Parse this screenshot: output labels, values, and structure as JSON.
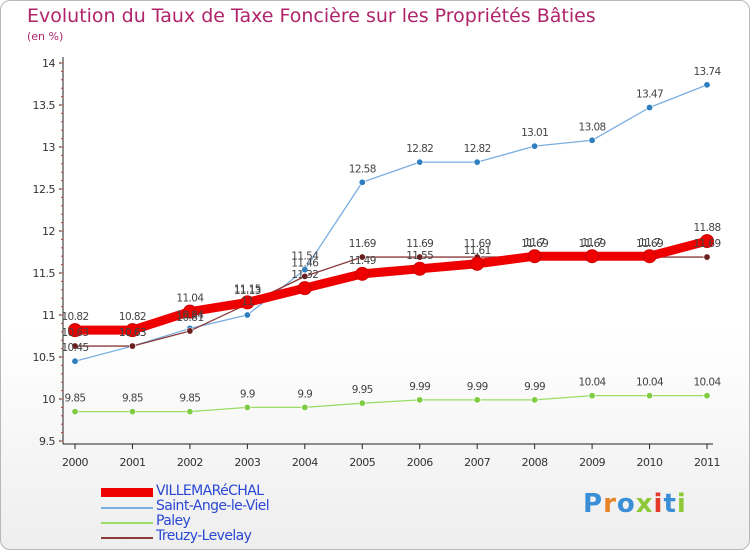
{
  "header": {
    "title": "Evolution du Taux de Taxe Foncière sur les Propriétés Bâties",
    "subtitle": "(en %)"
  },
  "logo": {
    "text": "Proxiti",
    "colors": [
      "#3a8fd6",
      "#e8842a",
      "#3a8fd6",
      "#8fc93a",
      "#e33a2a",
      "#3a8fd6",
      "#8fc93a"
    ]
  },
  "chart_data": {
    "type": "line",
    "title": "Evolution du Taux de Taxe Foncière sur les Propriétés Bâties",
    "ylabel": "(en %)",
    "xlabel": "",
    "x": [
      "2000",
      "2001",
      "2002",
      "2003",
      "2004",
      "2005",
      "2006",
      "2007",
      "2008",
      "2009",
      "2010",
      "2011"
    ],
    "ylim": [
      9.5,
      14
    ],
    "yticks": [
      "9.5",
      "10",
      "10.5",
      "11",
      "11.5",
      "12",
      "12.5",
      "13",
      "13.5",
      "14"
    ],
    "grid": false,
    "legend_position": "bottom-left",
    "series": [
      {
        "name": "VILLEMARéCHAL",
        "color": "#ee0000",
        "point_color": "#ee0000",
        "labels": [
          "10.82",
          "10.82",
          "11.04",
          "11.15",
          "11.32",
          "11.49",
          "11.55",
          "11.61",
          "11.7",
          "11.7",
          "11.7",
          "11.88"
        ],
        "values": [
          10.82,
          10.82,
          11.04,
          11.15,
          11.32,
          11.49,
          11.55,
          11.61,
          11.7,
          11.7,
          11.7,
          11.88
        ]
      },
      {
        "name": "Saint-Ange-le-Viel",
        "color": "#7aaee0",
        "point_color": "#2f7fc0",
        "labels": [
          "10.45",
          "10.63",
          "10.84",
          "11",
          "11.54",
          "12.58",
          "12.82",
          "12.82",
          "13.01",
          "13.08",
          "13.47",
          "13.74"
        ],
        "values": [
          10.45,
          10.63,
          10.84,
          11.0,
          11.54,
          12.58,
          12.82,
          12.82,
          13.01,
          13.08,
          13.47,
          13.74
        ]
      },
      {
        "name": "Paley",
        "color": "#99dd66",
        "point_color": "#7fcc44",
        "labels": [
          "9.85",
          "9.85",
          "9.85",
          "9.9",
          "9.9",
          "9.95",
          "9.99",
          "9.99",
          "9.99",
          "10.04",
          "10.04",
          "10.04"
        ],
        "values": [
          9.85,
          9.85,
          9.85,
          9.9,
          9.9,
          9.95,
          9.99,
          9.99,
          9.99,
          10.04,
          10.04,
          10.04
        ]
      },
      {
        "name": "Treuzy-Levelay",
        "color": "#8a3a3a",
        "point_color": "#6a1f1f",
        "labels": [
          "10.63",
          "10.63",
          "10.81",
          "11.13",
          "11.46",
          "11.69",
          "11.69",
          "11.69",
          "11.69",
          "11.69",
          "11.69",
          "11.69"
        ],
        "values": [
          10.63,
          10.63,
          10.81,
          11.13,
          11.46,
          11.69,
          11.69,
          11.69,
          11.69,
          11.69,
          11.69,
          11.69
        ]
      }
    ]
  }
}
